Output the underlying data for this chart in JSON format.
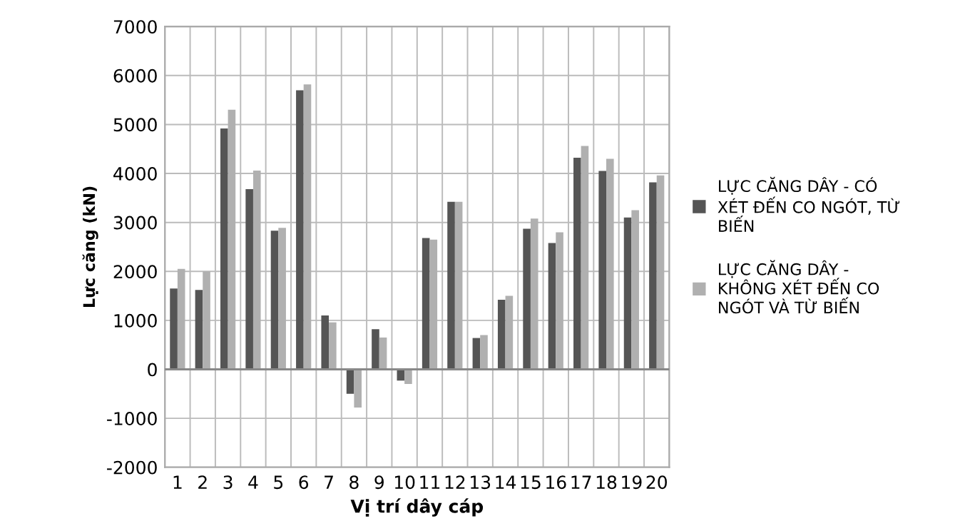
{
  "chart_data": {
    "type": "bar",
    "ylabel": "Lực căng (kN)",
    "xlabel": "Vị trí dây cáp",
    "categories": [
      "1",
      "2",
      "3",
      "4",
      "5",
      "6",
      "7",
      "8",
      "9",
      "10",
      "11",
      "12",
      "13",
      "14",
      "15",
      "16",
      "17",
      "18",
      "19",
      "20"
    ],
    "series": [
      {
        "name": "LỰC CĂNG DÂY - CÓ XÉT ĐẾN CO NGÓT, TỪ BIẾN",
        "color": "#555555",
        "values": [
          1650,
          1620,
          4920,
          3680,
          2830,
          5700,
          1100,
          -500,
          820,
          -230,
          2680,
          3420,
          640,
          1420,
          2870,
          2580,
          4320,
          4050,
          3100,
          3820
        ]
      },
      {
        "name": "LỰC CĂNG DÂY - KHÔNG XÉT ĐẾN CO NGÓT VÀ TỪ BIẾN",
        "color": "#b0b0b0",
        "values": [
          2050,
          2000,
          5300,
          4060,
          2890,
          5820,
          960,
          -780,
          650,
          -300,
          2650,
          3420,
          700,
          1500,
          3080,
          2800,
          4560,
          4300,
          3250,
          3960
        ]
      }
    ],
    "ylim": [
      -2000,
      7000
    ],
    "yticks": [
      -2000,
      -1000,
      0,
      1000,
      2000,
      3000,
      4000,
      5000,
      6000,
      7000
    ],
    "grid": true,
    "legend": "right"
  }
}
